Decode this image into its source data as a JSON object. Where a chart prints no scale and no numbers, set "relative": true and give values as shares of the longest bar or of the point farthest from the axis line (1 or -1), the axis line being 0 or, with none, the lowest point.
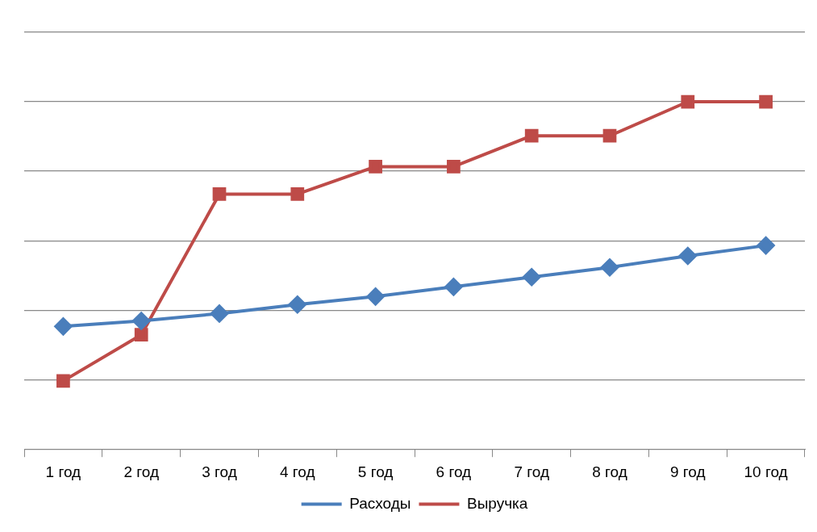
{
  "chart_data": {
    "type": "line",
    "relative": true,
    "grid": "y",
    "legend": "bottom",
    "line_style": "solid",
    "categories": [
      "1 год",
      "2 год",
      "3 год",
      "4 год",
      "5 год",
      "6 год",
      "7 год",
      "8 год",
      "9 год",
      "10 год"
    ],
    "series": [
      {
        "name": "Расходы",
        "color": "#4a7ebb",
        "marker": "diamond",
        "values": [
          0.353,
          0.369,
          0.39,
          0.416,
          0.439,
          0.467,
          0.495,
          0.523,
          0.556,
          0.586
        ]
      },
      {
        "name": "Выручка",
        "color": "#be4b48",
        "marker": "square",
        "values": [
          0.196,
          0.329,
          0.734,
          0.734,
          0.813,
          0.813,
          0.902,
          0.902,
          1,
          1
        ]
      }
    ]
  }
}
